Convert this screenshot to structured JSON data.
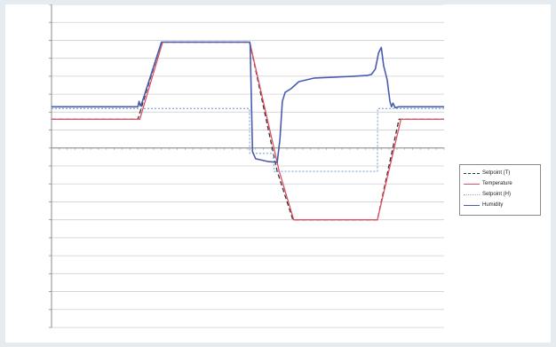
{
  "chart_data": {
    "type": "line",
    "title": "",
    "xlabel": "",
    "ylabel": "",
    "grid": true,
    "legend_position": "right",
    "x_range": [
      0,
      100
    ],
    "y_range": [
      -10,
      8
    ],
    "series": [
      {
        "name": "Setpoint (T)",
        "color": "#333333",
        "style": "dashed",
        "points": [
          [
            0,
            1.6
          ],
          [
            22,
            1.6
          ],
          [
            28,
            5.9
          ],
          [
            50.5,
            5.9
          ],
          [
            57.5,
            -1.3
          ],
          [
            61.5,
            -4.0
          ],
          [
            83,
            -4.0
          ],
          [
            88.5,
            1.6
          ],
          [
            100,
            1.6
          ]
        ]
      },
      {
        "name": "Temperature",
        "color": "#e05060",
        "style": "solid",
        "points": [
          [
            0,
            1.6
          ],
          [
            22.5,
            1.6
          ],
          [
            28.3,
            5.9
          ],
          [
            50.5,
            5.9
          ],
          [
            58,
            -1.3
          ],
          [
            61.7,
            -4.0
          ],
          [
            83,
            -4.0
          ],
          [
            89,
            1.6
          ],
          [
            100,
            1.6
          ]
        ]
      },
      {
        "name": "Setpoint (H)",
        "color": "#8fb0dc",
        "style": "dotted",
        "points": [
          [
            0,
            2.2
          ],
          [
            50.4,
            2.2
          ],
          [
            50.5,
            -0.3
          ],
          [
            56.5,
            -0.3
          ],
          [
            56.7,
            -1.3
          ],
          [
            83,
            -1.3
          ],
          [
            83.1,
            2.2
          ],
          [
            100,
            2.2
          ]
        ]
      },
      {
        "name": "Humidity",
        "color": "#4a5cb0",
        "style": "solid",
        "points": [
          [
            0,
            2.3
          ],
          [
            22,
            2.3
          ],
          [
            22.3,
            2.6
          ],
          [
            22.6,
            2.35
          ],
          [
            23,
            2.5
          ],
          [
            28,
            5.9
          ],
          [
            50.5,
            5.9
          ],
          [
            50.6,
            5.7
          ],
          [
            51.2,
            -0.2
          ],
          [
            52,
            -0.6
          ],
          [
            55,
            -0.75
          ],
          [
            57.5,
            -0.8
          ],
          [
            58.2,
            0.5
          ],
          [
            58.8,
            2.6
          ],
          [
            59.5,
            3.1
          ],
          [
            61,
            3.3
          ],
          [
            63,
            3.7
          ],
          [
            67,
            3.9
          ],
          [
            72,
            3.95
          ],
          [
            77,
            4.0
          ],
          [
            80.5,
            4.05
          ],
          [
            81.5,
            4.1
          ],
          [
            82.5,
            4.4
          ],
          [
            83.3,
            5.3
          ],
          [
            84,
            5.6
          ],
          [
            84.6,
            4.6
          ],
          [
            85.5,
            3.8
          ],
          [
            86.2,
            2.6
          ],
          [
            86.6,
            2.3
          ],
          [
            87,
            2.5
          ],
          [
            87.5,
            2.25
          ],
          [
            88.5,
            2.3
          ],
          [
            100,
            2.3
          ]
        ]
      }
    ]
  }
}
